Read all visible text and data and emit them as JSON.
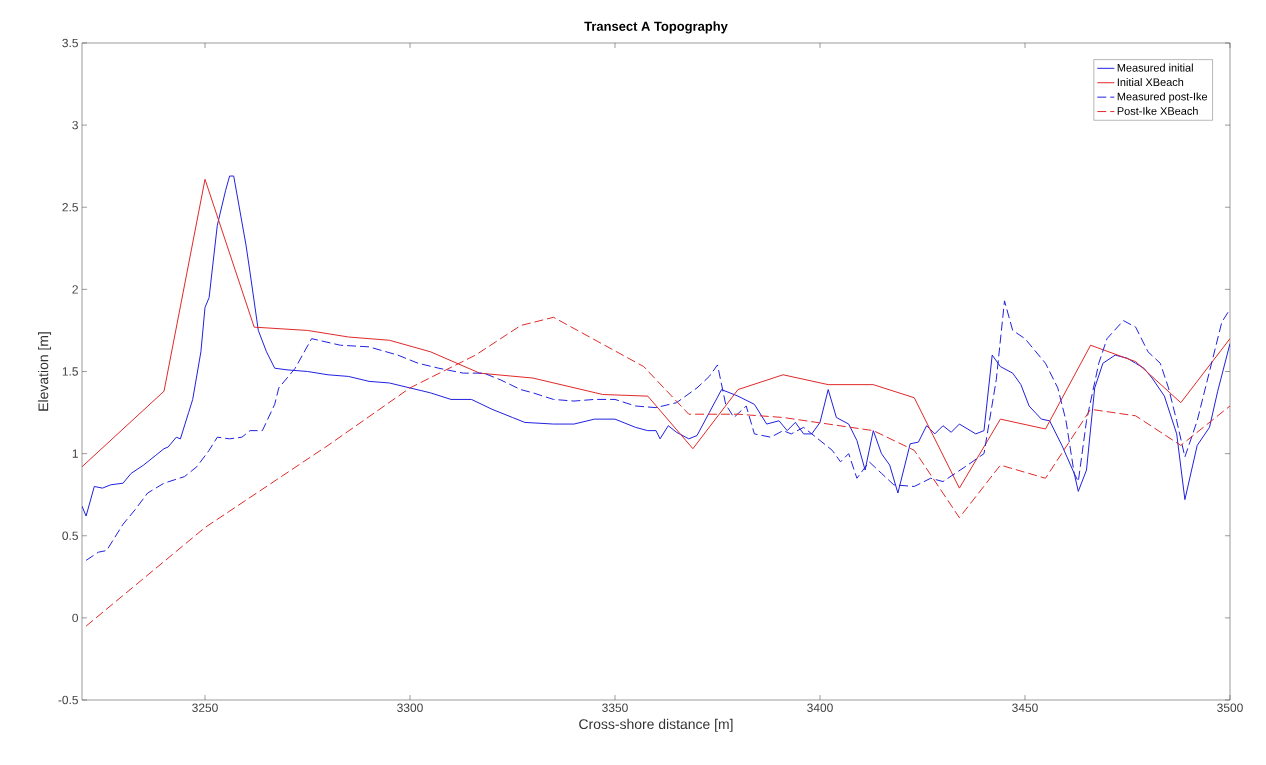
{
  "chart_data": {
    "type": "line",
    "title": "Transect A Topography",
    "xlabel": "Cross-shore distance [m]",
    "ylabel": "Elevation [m]",
    "xlim": [
      3220,
      3500
    ],
    "ylim": [
      -0.5,
      3.5
    ],
    "xticks": [
      3250,
      3300,
      3350,
      3400,
      3450,
      3500
    ],
    "yticks": [
      -0.5,
      0,
      0.5,
      1,
      1.5,
      2,
      2.5,
      3,
      3.5
    ],
    "legend": "top right",
    "grid": false,
    "series": [
      {
        "name": "Measured initial",
        "color": "#2020e0",
        "line_style": "solid",
        "x": [
          3220,
          3221,
          3223,
          3225,
          3227,
          3230,
          3232,
          3235,
          3238,
          3240,
          3241,
          3243,
          3244,
          3246,
          3247,
          3249,
          3250,
          3251,
          3253,
          3255,
          3256,
          3257,
          3258,
          3260,
          3261,
          3263,
          3265,
          3267,
          3270,
          3275,
          3280,
          3285,
          3290,
          3295,
          3300,
          3305,
          3310,
          3315,
          3320,
          3325,
          3328,
          3335,
          3340,
          3345,
          3350,
          3355,
          3358,
          3360,
          3361,
          3363,
          3365,
          3368,
          3370,
          3373,
          3376,
          3380,
          3384,
          3387,
          3390,
          3392,
          3394,
          3396,
          3398,
          3400,
          3402,
          3404,
          3407,
          3409,
          3411,
          3413,
          3415,
          3417,
          3419,
          3422,
          3424,
          3426,
          3428,
          3430,
          3432,
          3434,
          3438,
          3440,
          3442,
          3444,
          3447,
          3449,
          3451,
          3454,
          3456,
          3459,
          3462,
          3463,
          3465,
          3467,
          3469,
          3472,
          3475,
          3477,
          3479,
          3481,
          3484,
          3487,
          3489,
          3492,
          3495,
          3497,
          3500
        ],
        "values": [
          0.68,
          0.62,
          0.8,
          0.79,
          0.81,
          0.82,
          0.88,
          0.93,
          0.99,
          1.03,
          1.04,
          1.1,
          1.09,
          1.25,
          1.33,
          1.62,
          1.89,
          1.95,
          2.39,
          2.6,
          2.69,
          2.69,
          2.55,
          2.27,
          2.1,
          1.75,
          1.62,
          1.52,
          1.51,
          1.5,
          1.48,
          1.47,
          1.44,
          1.43,
          1.4,
          1.37,
          1.33,
          1.33,
          1.27,
          1.22,
          1.19,
          1.18,
          1.18,
          1.21,
          1.21,
          1.16,
          1.14,
          1.14,
          1.09,
          1.17,
          1.13,
          1.09,
          1.11,
          1.25,
          1.39,
          1.35,
          1.3,
          1.18,
          1.2,
          1.14,
          1.19,
          1.12,
          1.12,
          1.19,
          1.39,
          1.22,
          1.18,
          1.08,
          0.9,
          1.14,
          1.0,
          0.93,
          0.76,
          1.06,
          1.07,
          1.17,
          1.12,
          1.17,
          1.13,
          1.18,
          1.12,
          1.14,
          1.6,
          1.53,
          1.49,
          1.42,
          1.29,
          1.21,
          1.2,
          1.05,
          0.88,
          0.77,
          0.9,
          1.4,
          1.55,
          1.6,
          1.58,
          1.55,
          1.52,
          1.46,
          1.35,
          1.12,
          0.72,
          1.05,
          1.16,
          1.38,
          1.67
        ]
      },
      {
        "name": "Initial XBeach",
        "color": "#e02828",
        "line_style": "solid",
        "x": [
          3220,
          3240,
          3250,
          3262,
          3275,
          3285,
          3295,
          3305,
          3317,
          3330,
          3347,
          3358,
          3369,
          3380,
          3391,
          3402,
          3413,
          3423,
          3434,
          3444,
          3455,
          3466,
          3477,
          3488,
          3500
        ],
        "values": [
          0.92,
          1.38,
          2.67,
          1.77,
          1.75,
          1.71,
          1.69,
          1.62,
          1.49,
          1.46,
          1.36,
          1.35,
          1.03,
          1.39,
          1.48,
          1.42,
          1.42,
          1.34,
          0.79,
          1.21,
          1.15,
          1.66,
          1.56,
          1.31,
          1.7
        ]
      },
      {
        "name": "Measured post-Ike",
        "color": "#2020e0",
        "line_style": "dashed",
        "x": [
          3221,
          3224,
          3226,
          3230,
          3233,
          3236,
          3240,
          3245,
          3248,
          3251,
          3253,
          3256,
          3259,
          3261,
          3264,
          3267,
          3268,
          3272,
          3276,
          3283,
          3290,
          3297,
          3302,
          3307,
          3313,
          3318,
          3322,
          3327,
          3330,
          3335,
          3340,
          3345,
          3350,
          3355,
          3360,
          3365,
          3370,
          3373,
          3375,
          3377,
          3379,
          3382,
          3384,
          3388,
          3391,
          3393,
          3396,
          3400,
          3403,
          3405,
          3407,
          3409,
          3412,
          3415,
          3418,
          3423,
          3427,
          3430,
          3433,
          3436,
          3440,
          3443,
          3445,
          3447,
          3450,
          3455,
          3458,
          3460,
          3462,
          3463,
          3465,
          3468,
          3470,
          3474,
          3477,
          3480,
          3483,
          3485,
          3487,
          3489,
          3492,
          3495,
          3498,
          3500
        ],
        "values": [
          0.35,
          0.4,
          0.41,
          0.57,
          0.66,
          0.76,
          0.82,
          0.86,
          0.92,
          1.02,
          1.1,
          1.09,
          1.1,
          1.14,
          1.14,
          1.3,
          1.4,
          1.52,
          1.7,
          1.66,
          1.65,
          1.6,
          1.55,
          1.52,
          1.49,
          1.49,
          1.45,
          1.39,
          1.37,
          1.33,
          1.32,
          1.33,
          1.33,
          1.29,
          1.28,
          1.31,
          1.4,
          1.47,
          1.54,
          1.3,
          1.22,
          1.29,
          1.12,
          1.1,
          1.14,
          1.12,
          1.16,
          1.08,
          1.02,
          0.95,
          1.0,
          0.85,
          0.95,
          0.88,
          0.81,
          0.8,
          0.85,
          0.83,
          0.88,
          0.93,
          1.0,
          1.45,
          1.93,
          1.75,
          1.7,
          1.55,
          1.4,
          1.2,
          0.88,
          0.83,
          1.2,
          1.55,
          1.7,
          1.81,
          1.77,
          1.62,
          1.55,
          1.4,
          1.2,
          0.98,
          1.2,
          1.5,
          1.8,
          1.88
        ]
      },
      {
        "name": "Post-Ike XBeach",
        "color": "#e02828",
        "line_style": "dashed",
        "x": [
          3221,
          3250,
          3280,
          3300,
          3316,
          3327,
          3335,
          3346,
          3357,
          3368,
          3380,
          3391,
          3402,
          3413,
          3423,
          3434,
          3444,
          3455,
          3466,
          3477,
          3488,
          3500
        ],
        "values": [
          -0.05,
          0.55,
          1.05,
          1.4,
          1.6,
          1.78,
          1.83,
          1.68,
          1.53,
          1.24,
          1.24,
          1.22,
          1.18,
          1.14,
          1.02,
          0.61,
          0.93,
          0.85,
          1.27,
          1.23,
          1.05,
          1.29
        ]
      }
    ]
  }
}
